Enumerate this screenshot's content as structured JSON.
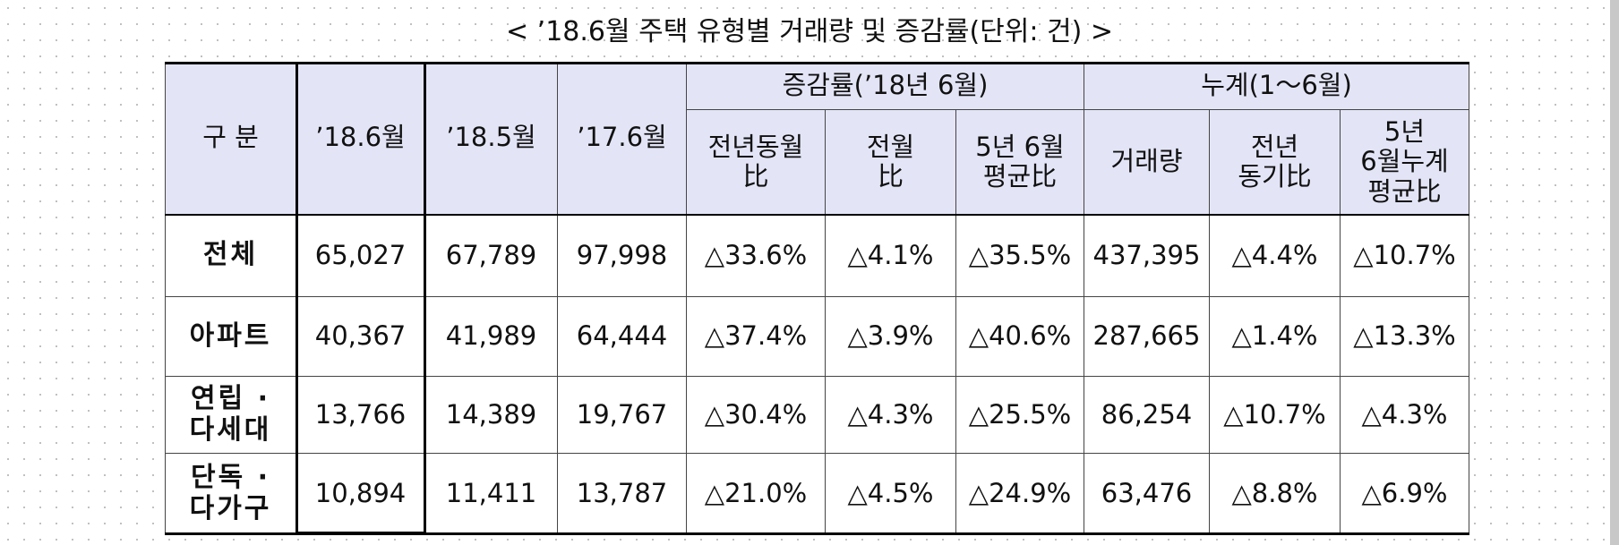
{
  "title": "< ’18.6월 주택 유형별 거래량 및 증감률(단위: 건) >",
  "table": {
    "header_top": [
      "증감률(’18년 6월)",
      "누계(1～6월)"
    ],
    "header_cols": [
      "구 분",
      "’18.6월",
      "’18.5월",
      "’17.6월"
    ],
    "header_sub": [
      [
        "전년동월",
        "比"
      ],
      [
        "전월",
        "比"
      ],
      [
        "5년 6월",
        "평균比"
      ],
      [
        "거래량"
      ],
      [
        "전년",
        "동기比"
      ],
      [
        "5년",
        "6월누계",
        "평균比"
      ]
    ],
    "rows": [
      {
        "label": [
          "전체"
        ],
        "cells": [
          "65,027",
          "67,789",
          "97,998",
          "△33.6%",
          "△4.1%",
          "△35.5%",
          "437,395",
          "△4.4%",
          "△10.7%"
        ]
      },
      {
        "label": [
          "아파트"
        ],
        "cells": [
          "40,367",
          "41,989",
          "64,444",
          "△37.4%",
          "△3.9%",
          "△40.6%",
          "287,665",
          "△1.4%",
          "△13.3%"
        ]
      },
      {
        "label": [
          "연립 ·",
          "다세대"
        ],
        "cells": [
          "13,766",
          "14,389",
          "19,767",
          "△30.4%",
          "△4.3%",
          "△25.5%",
          "86,254",
          "△10.7%",
          "△4.3%"
        ]
      },
      {
        "label": [
          "단독 ·",
          "다가구"
        ],
        "cells": [
          "10,894",
          "11,411",
          "13,787",
          "△21.0%",
          "△4.5%",
          "△24.9%",
          "63,476",
          "△8.8%",
          "△6.9%"
        ]
      }
    ]
  }
}
